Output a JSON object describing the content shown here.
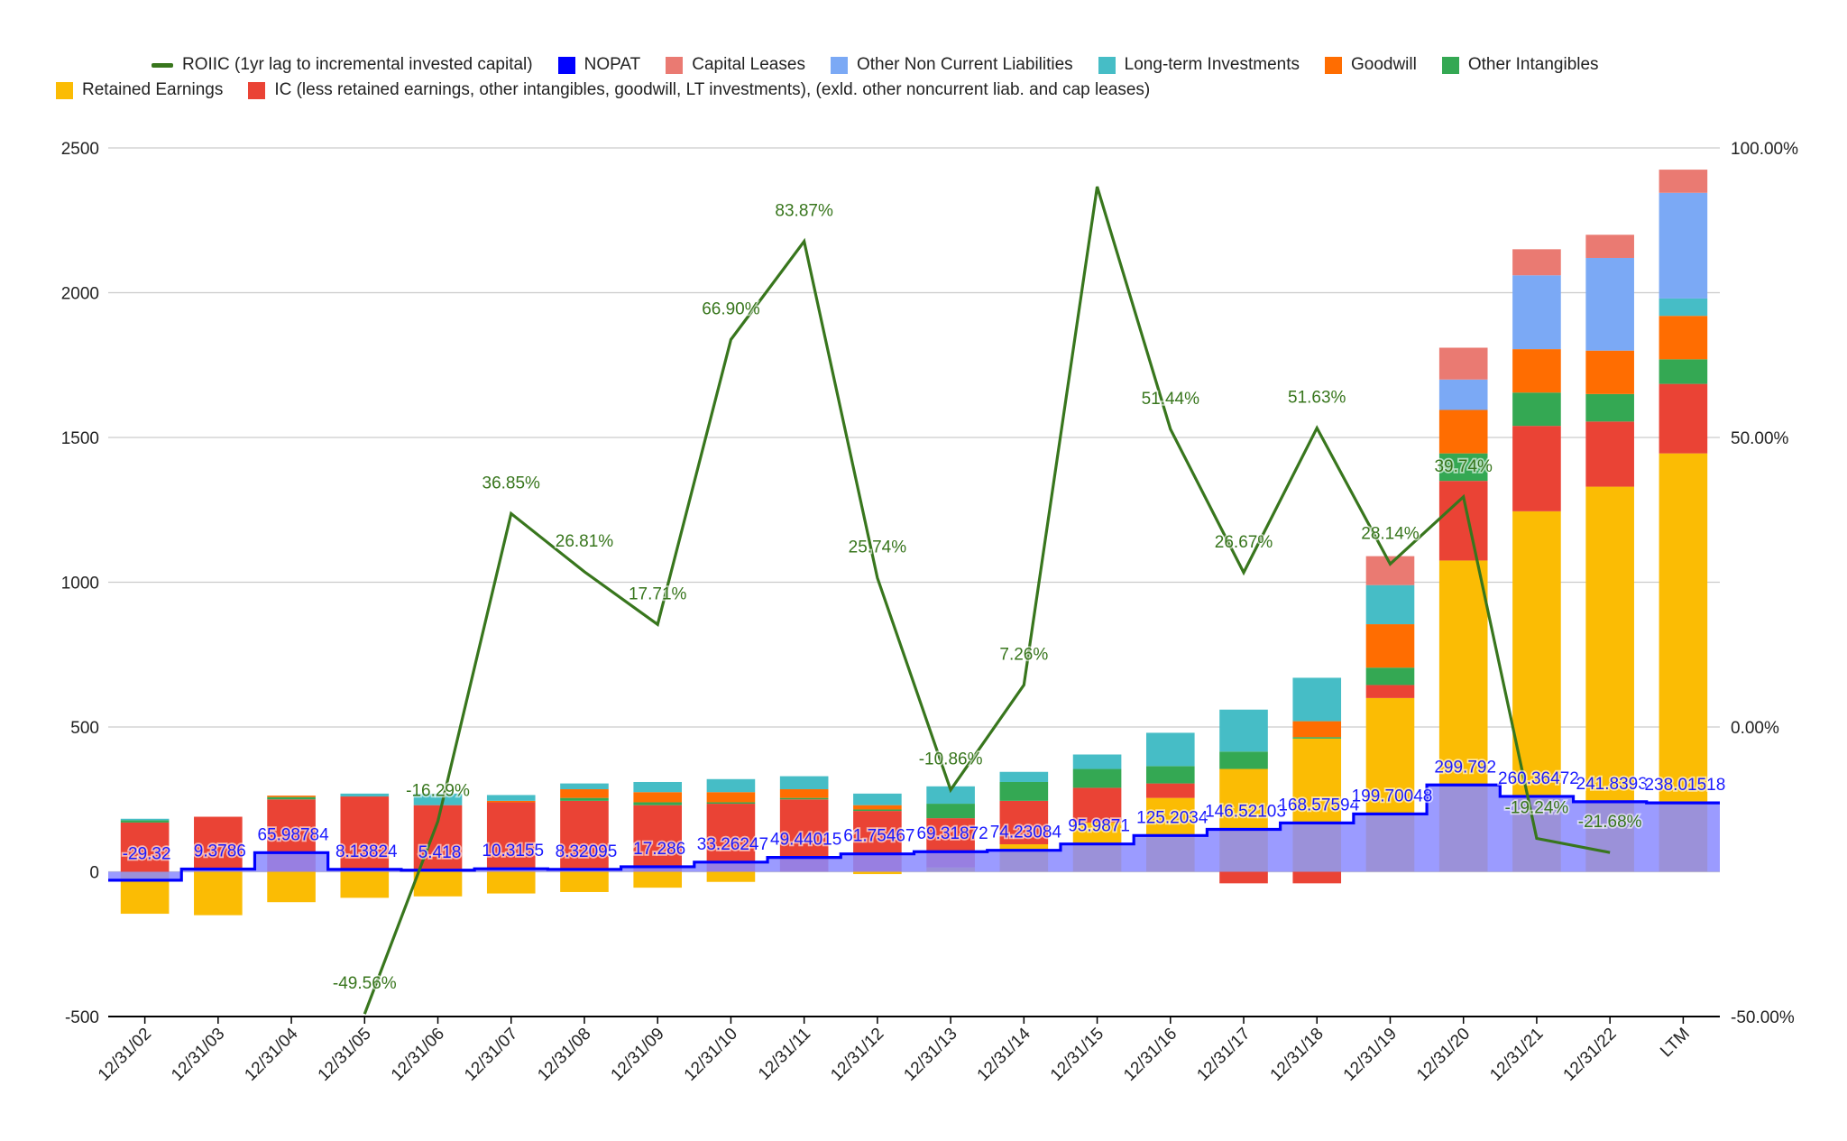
{
  "legend": [
    {
      "key": "roiic",
      "label": "ROIIC (1yr lag to incremental invested capital)",
      "color": "#38761d",
      "shape": "line"
    },
    {
      "key": "nopat",
      "label": "NOPAT",
      "color": "#0000ff",
      "shape": "square"
    },
    {
      "key": "cap_leases",
      "label": "Capital Leases",
      "color": "#ea7a72",
      "shape": "square"
    },
    {
      "key": "oncl",
      "label": "Other Non Current Liabilities",
      "color": "#7ba9f5",
      "shape": "square"
    },
    {
      "key": "lt_inv",
      "label": "Long-term Investments",
      "color": "#46bdc6",
      "shape": "square"
    },
    {
      "key": "goodwill",
      "label": "Goodwill",
      "color": "#ff6d01",
      "shape": "square"
    },
    {
      "key": "other_intang",
      "label": "Other Intangibles",
      "color": "#34a853",
      "shape": "square"
    },
    {
      "key": "retained",
      "label": "Retained Earnings",
      "color": "#fbbc04",
      "shape": "square"
    },
    {
      "key": "ic",
      "label": "IC (less retained earnings, other intangibles, goodwill, LT investments), (exld. other noncurrent liab. and cap leases)",
      "color": "#ea4335",
      "shape": "square"
    }
  ],
  "chart_data": {
    "type": "bar",
    "stacked": true,
    "title": "",
    "xlabel": "",
    "ylabel": "",
    "ylim": [
      -500,
      2500
    ],
    "y_ticks": [
      "-500",
      "0",
      "500",
      "1000",
      "1500",
      "2000",
      "2500"
    ],
    "y2lim": [
      -50,
      100
    ],
    "y2_ticks": [
      "-50.00%",
      "0.00%",
      "50.00%",
      "100.00%"
    ],
    "grid": true,
    "legend_position": "top",
    "categories": [
      "12/31/02",
      "12/31/03",
      "12/31/04",
      "12/31/05",
      "12/31/06",
      "12/31/07",
      "12/31/08",
      "12/31/09",
      "12/31/10",
      "12/31/11",
      "12/31/12",
      "12/31/13",
      "12/31/14",
      "12/31/15",
      "12/31/16",
      "12/31/17",
      "12/31/18",
      "12/31/19",
      "12/31/20",
      "12/31/21",
      "12/31/22",
      "LTM"
    ],
    "series": [
      {
        "key": "retained",
        "name": "Retained Earnings",
        "color": "#fbbc04",
        "values": [
          -145,
          -150,
          -105,
          -90,
          -85,
          -75,
          -70,
          -55,
          -35,
          0,
          -8,
          15,
          95,
          170,
          255,
          355,
          460,
          600,
          1075,
          1245,
          1330,
          1445
        ]
      },
      {
        "key": "ic",
        "name": "IC (less retained earnings, other intangibles, goodwill, LT investments), (exld. other noncurrent liab. and cap leases)",
        "color": "#ea4335",
        "values": [
          170,
          190,
          250,
          260,
          230,
          240,
          245,
          230,
          235,
          250,
          210,
          170,
          150,
          120,
          50,
          -40,
          -40,
          45,
          275,
          295,
          225,
          240
        ]
      },
      {
        "key": "other_intang",
        "name": "Other Intangibles",
        "color": "#34a853",
        "values": [
          8,
          0,
          8,
          0,
          0,
          0,
          10,
          10,
          5,
          5,
          5,
          50,
          65,
          65,
          60,
          60,
          5,
          60,
          95,
          115,
          95,
          85
        ]
      },
      {
        "key": "goodwill",
        "name": "Goodwill",
        "color": "#ff6d01",
        "values": [
          0,
          0,
          5,
          0,
          0,
          5,
          30,
          35,
          35,
          30,
          15,
          0,
          0,
          0,
          0,
          0,
          55,
          150,
          150,
          150,
          150,
          150
        ]
      },
      {
        "key": "lt_inv",
        "name": "Long-term Investments",
        "color": "#46bdc6",
        "values": [
          5,
          0,
          0,
          10,
          40,
          20,
          20,
          35,
          45,
          45,
          40,
          60,
          35,
          50,
          115,
          145,
          150,
          135,
          0,
          0,
          0,
          60
        ]
      },
      {
        "key": "oncl",
        "name": "Other Non Current Liabilities",
        "color": "#7ba9f5",
        "values": [
          0,
          0,
          0,
          0,
          0,
          0,
          0,
          0,
          0,
          0,
          0,
          0,
          0,
          0,
          0,
          0,
          0,
          0,
          105,
          255,
          320,
          365
        ]
      },
      {
        "key": "cap_leases",
        "name": "Capital Leases",
        "color": "#ea7a72",
        "values": [
          0,
          0,
          0,
          0,
          0,
          0,
          0,
          0,
          0,
          0,
          0,
          0,
          0,
          0,
          0,
          0,
          0,
          100,
          110,
          90,
          80,
          80
        ]
      }
    ],
    "nopat": {
      "key": "nopat",
      "name": "NOPAT",
      "color": "#0000ff",
      "fill": "#8a8aff",
      "values": [
        -29.32,
        9.3786,
        65.98784,
        8.13824,
        5.418,
        10.3155,
        8.32095,
        17.286,
        33.26247,
        49.44015,
        61.75467,
        69.31872,
        74.23084,
        95.9871,
        125.2034,
        146.52103,
        168.57594,
        199.70048,
        299.792,
        260.36472,
        241.8393,
        238.01518
      ],
      "labels": [
        "-29.32",
        "9.3786",
        "65.98784",
        "8.13824",
        "5.418",
        "10.3155",
        "8.32095",
        "17.286",
        "33.26247",
        "49.44015",
        "61.75467",
        "69.31872",
        "74.23084",
        "95.9871",
        "125.2034",
        "146.52103",
        "168.57594",
        "199.70048",
        "299.792",
        "260.36472",
        "241.8393",
        "238.01518"
      ]
    },
    "roiic": {
      "key": "roiic",
      "name": "ROIIC (1yr lag to incremental invested capital)",
      "color": "#38761d",
      "axis": "right",
      "values": [
        null,
        null,
        null,
        -49.56,
        -16.29,
        36.85,
        26.81,
        17.71,
        66.9,
        83.87,
        25.74,
        -10.86,
        7.26,
        93.3,
        51.44,
        26.67,
        51.63,
        28.14,
        39.74,
        -19.24,
        -21.68,
        null
      ],
      "labels": [
        null,
        null,
        null,
        "-49.56%",
        "-16.29%",
        "36.85%",
        "26.81%",
        "17.71%",
        "66.90%",
        "83.87%",
        "25.74%",
        "-10.86%",
        "7.26%",
        null,
        "51.44%",
        "26.67%",
        "51.63%",
        "28.14%",
        "39.74%",
        "-19.24%",
        "-21.68%",
        null
      ]
    }
  }
}
